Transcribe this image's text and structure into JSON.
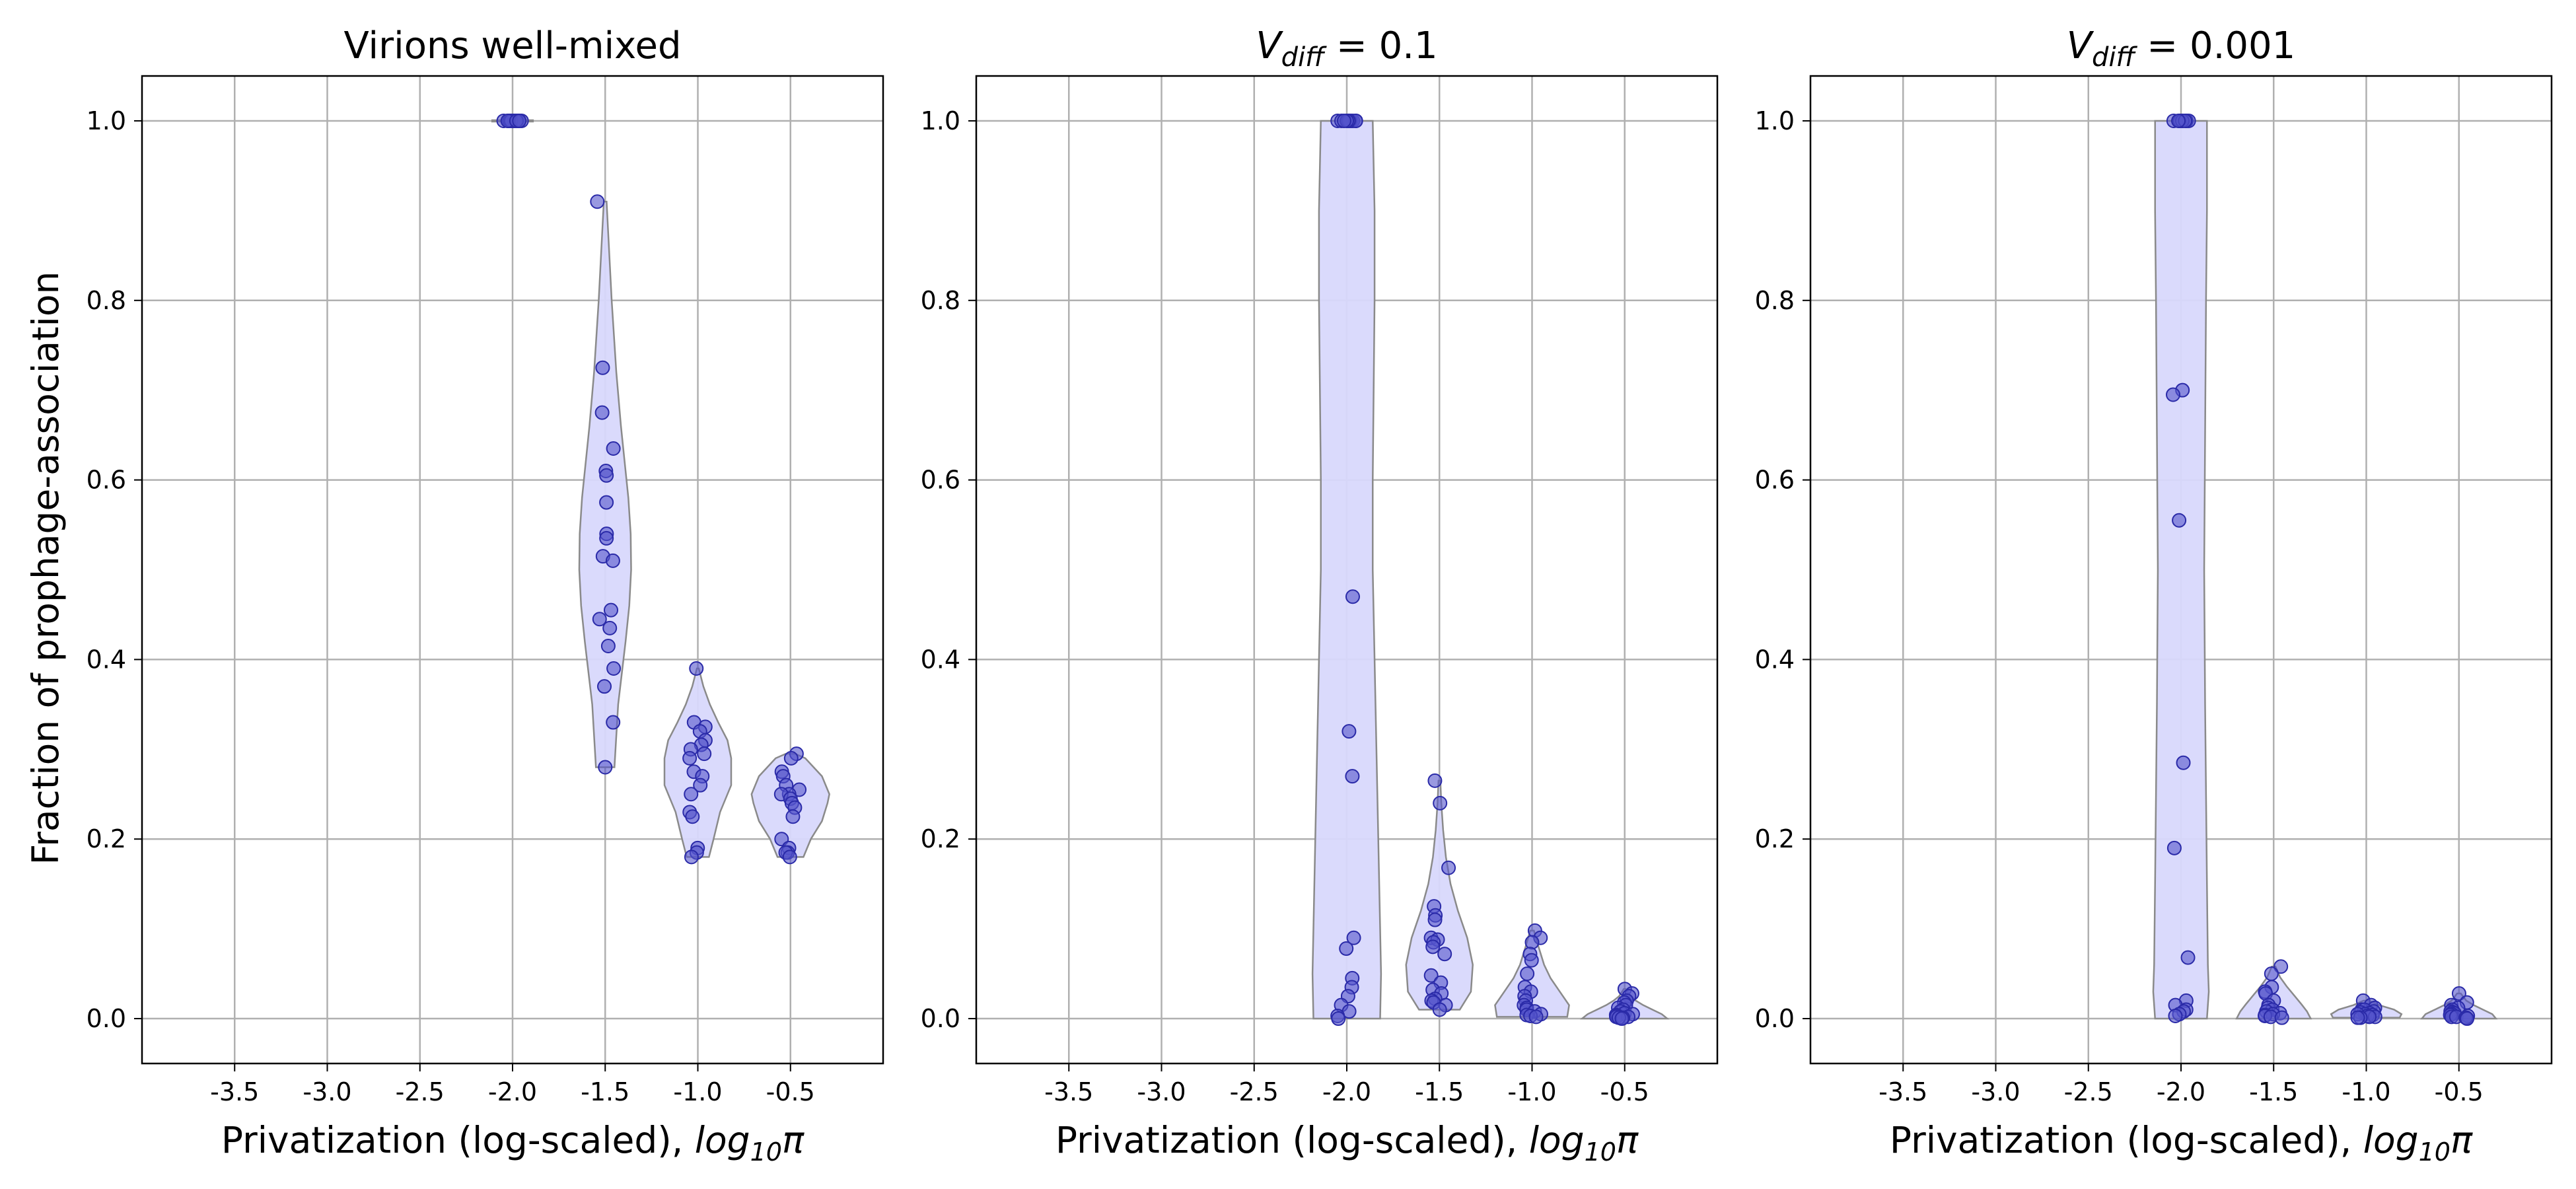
{
  "figure": {
    "ylabel": "Fraction of prophage-association",
    "colors": {
      "violin_fill": "#d8d8fc",
      "violin_edge": "#8a8a8a",
      "point_fill": "#5555cc",
      "point_edge": "#2a2aa8",
      "grid": "#b0b0b0"
    }
  },
  "chart_data": [
    {
      "type": "violin",
      "title": "Virions well-mixed",
      "xlabel": "Privatization (log-scaled), log10π",
      "xlim": [
        -4.0,
        -0.0
      ],
      "ylim": [
        -0.05,
        1.05
      ],
      "xticks": [
        "-3.5",
        "-3.0",
        "-2.5",
        "-2.0",
        "-1.5",
        "-1.0",
        "-0.5"
      ],
      "yticks": [
        "0.0",
        "0.2",
        "0.4",
        "0.6",
        "0.8",
        "1.0"
      ],
      "grid": true,
      "groups": [
        {
          "x": -2.0,
          "points": [
            1.0,
            1.0,
            1.0,
            1.0,
            1.0,
            1.0,
            1.0,
            1.0,
            1.0,
            1.0,
            1.0,
            1.0,
            1.0,
            1.0,
            1.0,
            1.0,
            1.0,
            1.0,
            1.0,
            1.0
          ],
          "violin": {
            "ys": [
              1.0
            ],
            "ws": [
              0.22
            ]
          }
        },
        {
          "x": -1.5,
          "points": [
            0.91,
            0.725,
            0.675,
            0.635,
            0.61,
            0.605,
            0.575,
            0.54,
            0.535,
            0.515,
            0.51,
            0.455,
            0.445,
            0.435,
            0.415,
            0.39,
            0.37,
            0.33,
            0.28
          ],
          "violin": {
            "ys": [
              0.28,
              0.35,
              0.42,
              0.46,
              0.5,
              0.54,
              0.58,
              0.62,
              0.66,
              0.72,
              0.8,
              0.87,
              0.91
            ],
            "ws": [
              0.1,
              0.14,
              0.22,
              0.26,
              0.28,
              0.275,
              0.25,
              0.21,
              0.17,
              0.12,
              0.07,
              0.035,
              0.015
            ]
          }
        },
        {
          "x": -1.0,
          "points": [
            0.39,
            0.33,
            0.325,
            0.32,
            0.31,
            0.305,
            0.3,
            0.295,
            0.29,
            0.275,
            0.27,
            0.26,
            0.25,
            0.23,
            0.225,
            0.19,
            0.185,
            0.18
          ],
          "violin": {
            "ys": [
              0.18,
              0.2,
              0.23,
              0.26,
              0.29,
              0.31,
              0.33,
              0.35,
              0.37,
              0.39
            ],
            "ws": [
              0.12,
              0.17,
              0.24,
              0.36,
              0.36,
              0.32,
              0.22,
              0.13,
              0.06,
              0.01
            ]
          }
        },
        {
          "x": -0.5,
          "points": [
            0.295,
            0.29,
            0.275,
            0.27,
            0.26,
            0.255,
            0.25,
            0.25,
            0.245,
            0.24,
            0.235,
            0.225,
            0.2,
            0.19,
            0.185,
            0.185,
            0.18
          ],
          "violin": {
            "ys": [
              0.18,
              0.2,
              0.22,
              0.24,
              0.25,
              0.27,
              0.29,
              0.295
            ],
            "ws": [
              0.14,
              0.22,
              0.34,
              0.4,
              0.42,
              0.34,
              0.16,
              0.05
            ]
          }
        }
      ]
    },
    {
      "type": "violin",
      "title": "V_diff = 0.1",
      "title_math": {
        "base": "V",
        "sub": "diff",
        "rest": " = 0.1"
      },
      "xlabel": "Privatization (log-scaled), log10π",
      "xlim": [
        -4.0,
        -0.0
      ],
      "ylim": [
        -0.05,
        1.05
      ],
      "xticks": [
        "-3.5",
        "-3.0",
        "-2.5",
        "-2.0",
        "-1.5",
        "-1.0",
        "-0.5"
      ],
      "yticks": [
        "0.0",
        "0.2",
        "0.4",
        "0.6",
        "0.8",
        "1.0"
      ],
      "grid": true,
      "groups": [
        {
          "x": -2.0,
          "points": [
            1.0,
            1.0,
            1.0,
            1.0,
            1.0,
            1.0,
            1.0,
            1.0,
            1.0,
            1.0,
            1.0,
            0.47,
            0.32,
            0.27,
            0.09,
            0.078,
            0.045,
            0.035,
            0.025,
            0.015,
            0.008,
            0.003,
            0.0
          ],
          "violin": {
            "ys": [
              0.0,
              0.05,
              0.1,
              0.2,
              0.3,
              0.4,
              0.5,
              0.6,
              0.7,
              0.8,
              0.9,
              1.0
            ],
            "ws": [
              0.36,
              0.37,
              0.36,
              0.34,
              0.32,
              0.3,
              0.28,
              0.28,
              0.29,
              0.3,
              0.3,
              0.28
            ]
          }
        },
        {
          "x": -1.5,
          "points": [
            0.265,
            0.24,
            0.168,
            0.125,
            0.115,
            0.11,
            0.09,
            0.088,
            0.085,
            0.08,
            0.072,
            0.048,
            0.04,
            0.032,
            0.028,
            0.022,
            0.02,
            0.018,
            0.015,
            0.01
          ],
          "violin": {
            "ys": [
              0.01,
              0.03,
              0.06,
              0.09,
              0.12,
              0.15,
              0.18,
              0.21,
              0.24,
              0.265
            ],
            "ws": [
              0.22,
              0.34,
              0.36,
              0.3,
              0.2,
              0.12,
              0.07,
              0.04,
              0.02,
              0.01
            ]
          }
        },
        {
          "x": -1.0,
          "points": [
            0.098,
            0.09,
            0.085,
            0.072,
            0.065,
            0.05,
            0.035,
            0.03,
            0.025,
            0.02,
            0.015,
            0.012,
            0.01,
            0.008,
            0.005,
            0.004,
            0.003,
            0.002
          ],
          "violin": {
            "ys": [
              0.002,
              0.015,
              0.03,
              0.045,
              0.06,
              0.08,
              0.098
            ],
            "ws": [
              0.38,
              0.4,
              0.3,
              0.2,
              0.13,
              0.07,
              0.02
            ]
          }
        },
        {
          "x": -0.5,
          "points": [
            0.033,
            0.028,
            0.025,
            0.02,
            0.018,
            0.015,
            0.012,
            0.01,
            0.008,
            0.006,
            0.005,
            0.004,
            0.003,
            0.002,
            0.002,
            0.001,
            0.001,
            0.0
          ],
          "violin": {
            "ys": [
              0.0,
              0.005,
              0.01,
              0.015,
              0.02,
              0.025,
              0.033
            ],
            "ws": [
              0.46,
              0.4,
              0.3,
              0.2,
              0.12,
              0.06,
              0.01
            ]
          }
        }
      ]
    },
    {
      "type": "violin",
      "title": "V_diff = 0.001",
      "title_math": {
        "base": "V",
        "sub": "diff",
        "rest": " = 0.001"
      },
      "xlabel": "Privatization (log-scaled), log10π",
      "xlim": [
        -4.0,
        -0.0
      ],
      "ylim": [
        -0.05,
        1.05
      ],
      "xticks": [
        "-3.5",
        "-3.0",
        "-2.5",
        "-2.0",
        "-1.5",
        "-1.0",
        "-0.5"
      ],
      "yticks": [
        "0.0",
        "0.2",
        "0.4",
        "0.6",
        "0.8",
        "1.0"
      ],
      "grid": true,
      "groups": [
        {
          "x": -2.0,
          "points": [
            1.0,
            1.0,
            1.0,
            1.0,
            1.0,
            1.0,
            1.0,
            1.0,
            1.0,
            1.0,
            0.7,
            0.695,
            0.555,
            0.285,
            0.19,
            0.068,
            0.02,
            0.015,
            0.01,
            0.008,
            0.005,
            0.003
          ],
          "violin": {
            "ys": [
              0.0,
              0.03,
              0.06,
              0.15,
              0.25,
              0.35,
              0.5,
              0.65,
              0.8,
              0.9,
              1.0
            ],
            "ws": [
              0.28,
              0.3,
              0.29,
              0.28,
              0.27,
              0.26,
              0.25,
              0.26,
              0.27,
              0.28,
              0.28
            ]
          }
        },
        {
          "x": -1.5,
          "points": [
            0.058,
            0.05,
            0.035,
            0.03,
            0.028,
            0.02,
            0.015,
            0.012,
            0.01,
            0.008,
            0.006,
            0.005,
            0.004,
            0.003,
            0.002,
            0.001
          ],
          "violin": {
            "ys": [
              0.0,
              0.008,
              0.016,
              0.026,
              0.036,
              0.046,
              0.058
            ],
            "ws": [
              0.4,
              0.36,
              0.3,
              0.22,
              0.14,
              0.07,
              0.02
            ]
          }
        },
        {
          "x": -1.0,
          "points": [
            0.02,
            0.015,
            0.012,
            0.01,
            0.01,
            0.008,
            0.007,
            0.006,
            0.005,
            0.005,
            0.004,
            0.003,
            0.002,
            0.002,
            0.001,
            0.001
          ],
          "violin": {
            "ys": [
              0.001,
              0.005,
              0.01,
              0.015,
              0.02
            ],
            "ws": [
              0.36,
              0.38,
              0.3,
              0.14,
              0.03
            ]
          }
        },
        {
          "x": -0.5,
          "points": [
            0.028,
            0.018,
            0.015,
            0.012,
            0.01,
            0.008,
            0.007,
            0.006,
            0.005,
            0.004,
            0.003,
            0.002,
            0.002,
            0.001,
            0.001,
            0.0
          ],
          "violin": {
            "ys": [
              0.0,
              0.005,
              0.01,
              0.015,
              0.02,
              0.028
            ],
            "ws": [
              0.4,
              0.36,
              0.26,
              0.16,
              0.08,
              0.02
            ]
          }
        }
      ]
    }
  ]
}
